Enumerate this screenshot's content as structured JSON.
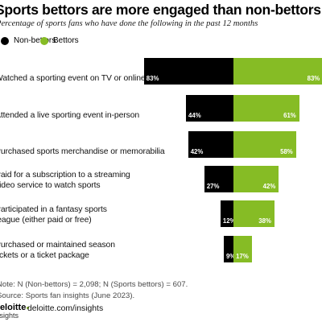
{
  "title": "Sports bettors are more engaged than non-bettors",
  "subtitle": "Percentage of sports fans who have done the following in the past 12 months",
  "colors": {
    "non_bettors": "#000000",
    "bettors": "#86bc25"
  },
  "chart_data": {
    "type": "bar",
    "title": "Sports bettors are more engaged than non-bettors",
    "subtitle": "Percentage of sports fans who have done the following in the past 12 months",
    "legend": "top-left",
    "categories": [
      "Watched a sporting event on TV or online",
      "Attended a live sporting event in-person",
      "Purchased sports merchandise or memorabilia",
      "Paid for a subscription to a streaming video service to watch sports",
      "Participated in a fantasy sports league (either paid or free)",
      "Purchased or maintained season tickets or a ticket package"
    ],
    "category_lines": [
      [
        "Watched a sporting event on TV or online"
      ],
      [
        "Attended a live sporting event in-person"
      ],
      [
        "Purchased sports merchandise or memorabilia"
      ],
      [
        "Paid for a subscription to a streaming",
        "video service to watch sports"
      ],
      [
        "Participated in a fantasy sports",
        "league (either paid or free)"
      ],
      [
        "Purchased or maintained season",
        "tickets or a ticket package"
      ]
    ],
    "series": [
      {
        "name": "Non-bettors",
        "values": [
          83,
          44,
          42,
          27,
          12,
          9
        ],
        "labels": [
          "83%",
          "44%",
          "42%",
          "27%",
          "12%",
          "9%"
        ]
      },
      {
        "name": "Bettors",
        "values": [
          83,
          61,
          58,
          42,
          38,
          17
        ],
        "labels": [
          "83%",
          "61%",
          "58%",
          "42%",
          "38%",
          "17%"
        ]
      }
    ],
    "xlim": [
      0,
      100
    ]
  },
  "notes": {
    "note": "Note: N (Non-bettors) = 2,098; N (Sports bettors) = 607.",
    "source": "Source: Sports fan insights (June 2023)."
  },
  "footer": {
    "logo_name": "Deloitte",
    "logo_sub": "Insights",
    "link": "deloitte.com/insights"
  }
}
